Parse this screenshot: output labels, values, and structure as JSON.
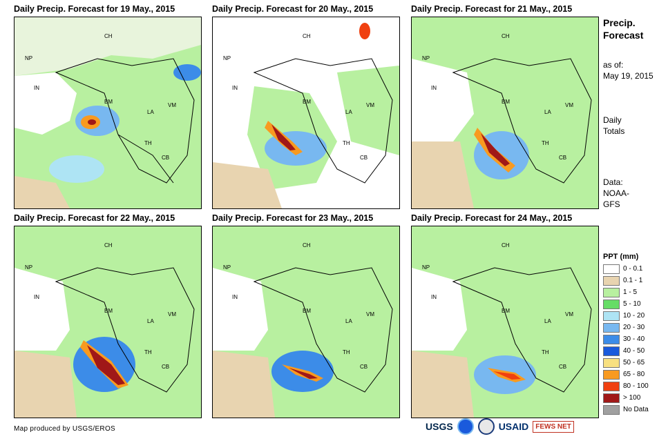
{
  "panels": [
    {
      "title": "Daily Precip. Forecast for 19 May., 2015"
    },
    {
      "title": "Daily Precip. Forecast for 20 May., 2015"
    },
    {
      "title": "Daily Precip. Forecast for 21 May., 2015"
    },
    {
      "title": "Daily Precip. Forecast for 22 May., 2015"
    },
    {
      "title": "Daily Precip. Forecast for 23 May., 2015"
    },
    {
      "title": "Daily Precip. Forecast for 24 May., 2015"
    }
  ],
  "country_labels": {
    "ch": "CH",
    "np": "NP",
    "in": "IN",
    "bm": "BM",
    "vm": "VM",
    "la": "LA",
    "th": "TH",
    "cb": "CB"
  },
  "side": {
    "title_line1": "Precip.",
    "title_line2": "Forecast",
    "asof_line1": "as of:",
    "asof_line2": "May 19, 2015",
    "totals_line1": "Daily",
    "totals_line2": "Totals",
    "data_line1": "Data:",
    "data_line2": "NOAA-",
    "data_line3": "GFS"
  },
  "legend": {
    "title": "PPT (mm)",
    "items": [
      {
        "label": "0 - 0.1",
        "color": "#ffffff"
      },
      {
        "label": "0.1 - 1",
        "color": "#e8d4b0"
      },
      {
        "label": "1 - 5",
        "color": "#b8f0a0"
      },
      {
        "label": "5 - 10",
        "color": "#66dd66"
      },
      {
        "label": "10 - 20",
        "color": "#aee4f4"
      },
      {
        "label": "20 - 30",
        "color": "#78b8f0"
      },
      {
        "label": "30 - 40",
        "color": "#3c8ce8"
      },
      {
        "label": "40 - 50",
        "color": "#1a5adc"
      },
      {
        "label": "50 - 65",
        "color": "#f8e080"
      },
      {
        "label": "65 - 80",
        "color": "#f89a20"
      },
      {
        "label": "80 - 100",
        "color": "#f04010"
      },
      {
        "label": "> 100",
        "color": "#a01818"
      },
      {
        "label": "No Data",
        "color": "#a0a0a0"
      }
    ]
  },
  "footer": "Map produced by USGS/EROS",
  "logos": {
    "usgs": "USGS",
    "usaid": "USAID",
    "fews": "FEWS NET"
  }
}
